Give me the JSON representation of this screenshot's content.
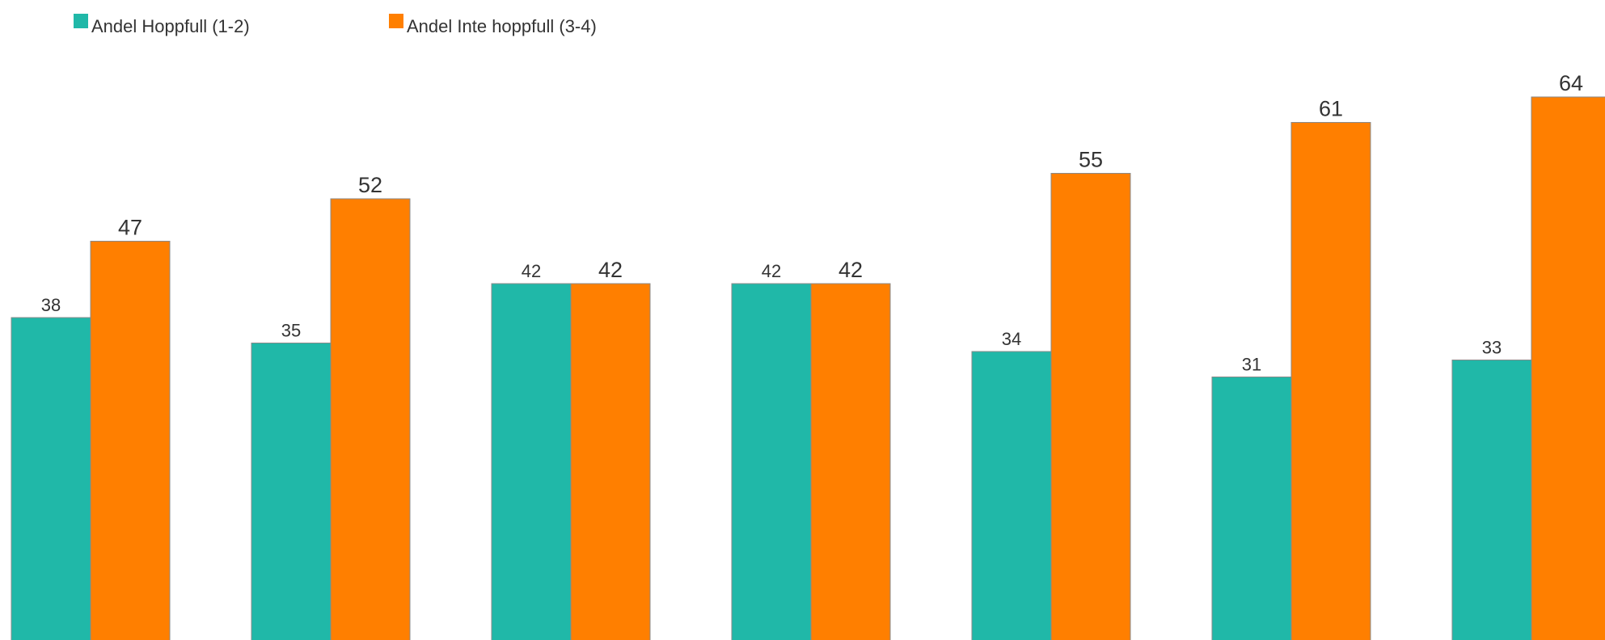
{
  "chart_data": {
    "type": "bar",
    "categories": [
      "",
      "",
      "",
      "",
      "",
      "",
      ""
    ],
    "series": [
      {
        "name": "Andel Hoppfull (1-2)",
        "values": [
          38,
          35,
          42,
          42,
          34,
          31,
          33
        ],
        "color": "#20b8a8"
      },
      {
        "name": "Andel Inte hoppfull (3-4)",
        "values": [
          47,
          52,
          42,
          42,
          55,
          61,
          64
        ],
        "color": "#ff7f00"
      }
    ],
    "data_labels": true,
    "legend_position": "top-left",
    "grid": false
  }
}
